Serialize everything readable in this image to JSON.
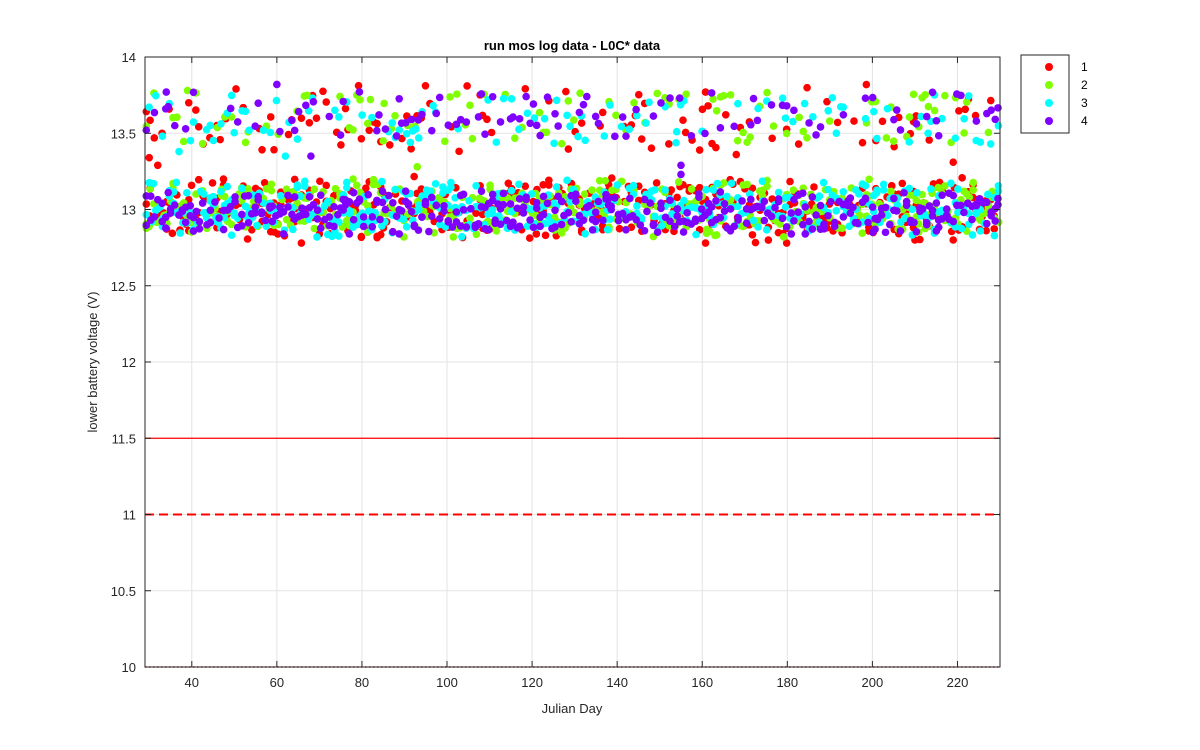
{
  "chart_data": {
    "type": "scatter",
    "title": "run mos log data - L0C* data",
    "xlabel": "Julian Day",
    "ylabel": "lower battery voltage (V)",
    "xlim": [
      29,
      230
    ],
    "ylim": [
      10,
      14
    ],
    "xticks": [
      40,
      60,
      80,
      100,
      120,
      140,
      160,
      180,
      200,
      220
    ],
    "yticks": [
      10,
      10.5,
      11,
      11.5,
      12,
      12.5,
      13,
      13.5,
      14
    ],
    "grid": true,
    "legend_position": "outside-top-right",
    "threshold_lines": [
      {
        "y": 11.5,
        "style": "solid",
        "color": "#ff0000"
      },
      {
        "y": 11.0,
        "style": "dashed",
        "color": "#ff0000"
      },
      {
        "y": 10.0,
        "style": "dotted",
        "color": "#ff0000"
      }
    ],
    "series": [
      {
        "name": "1",
        "color": "#ff0000",
        "upper_band": [
          13.34,
          13.86
        ],
        "lower_band": [
          12.78,
          13.22
        ],
        "notable_points": [
          [
            30,
            13.34
          ],
          [
            32,
            13.29
          ],
          [
            33,
            13.5
          ],
          [
            168,
            13.36
          ],
          [
            219,
            13.31
          ],
          [
            219,
            12.8
          ],
          [
            210,
            12.8
          ],
          [
            70,
            12.84
          ],
          [
            121,
            12.84
          ]
        ]
      },
      {
        "name": "2",
        "color": "#80ff00",
        "upper_band": [
          13.4,
          13.8
        ],
        "lower_band": [
          12.82,
          13.2
        ],
        "notable_points": [
          [
            30,
            12.89
          ],
          [
            39,
            13.78
          ],
          [
            85,
            13.45
          ],
          [
            93,
            13.28
          ],
          [
            163,
            12.83
          ]
        ]
      },
      {
        "name": "3",
        "color": "#00ffff",
        "upper_band": [
          13.4,
          13.78
        ],
        "lower_band": [
          12.82,
          13.2
        ],
        "notable_points": [
          [
            31,
            13.17
          ],
          [
            37,
            13.38
          ],
          [
            62,
            13.35
          ],
          [
            154,
            13.51
          ]
        ]
      },
      {
        "name": "4",
        "color": "#8000ff",
        "upper_band": [
          13.45,
          13.8
        ],
        "lower_band": [
          12.84,
          13.12
        ],
        "notable_points": [
          [
            34,
            13.77
          ],
          [
            36,
            13.55
          ],
          [
            60,
            13.82
          ],
          [
            68,
            13.35
          ],
          [
            84,
            13.62
          ],
          [
            155,
            13.29
          ],
          [
            155,
            13.23
          ]
        ]
      }
    ]
  }
}
